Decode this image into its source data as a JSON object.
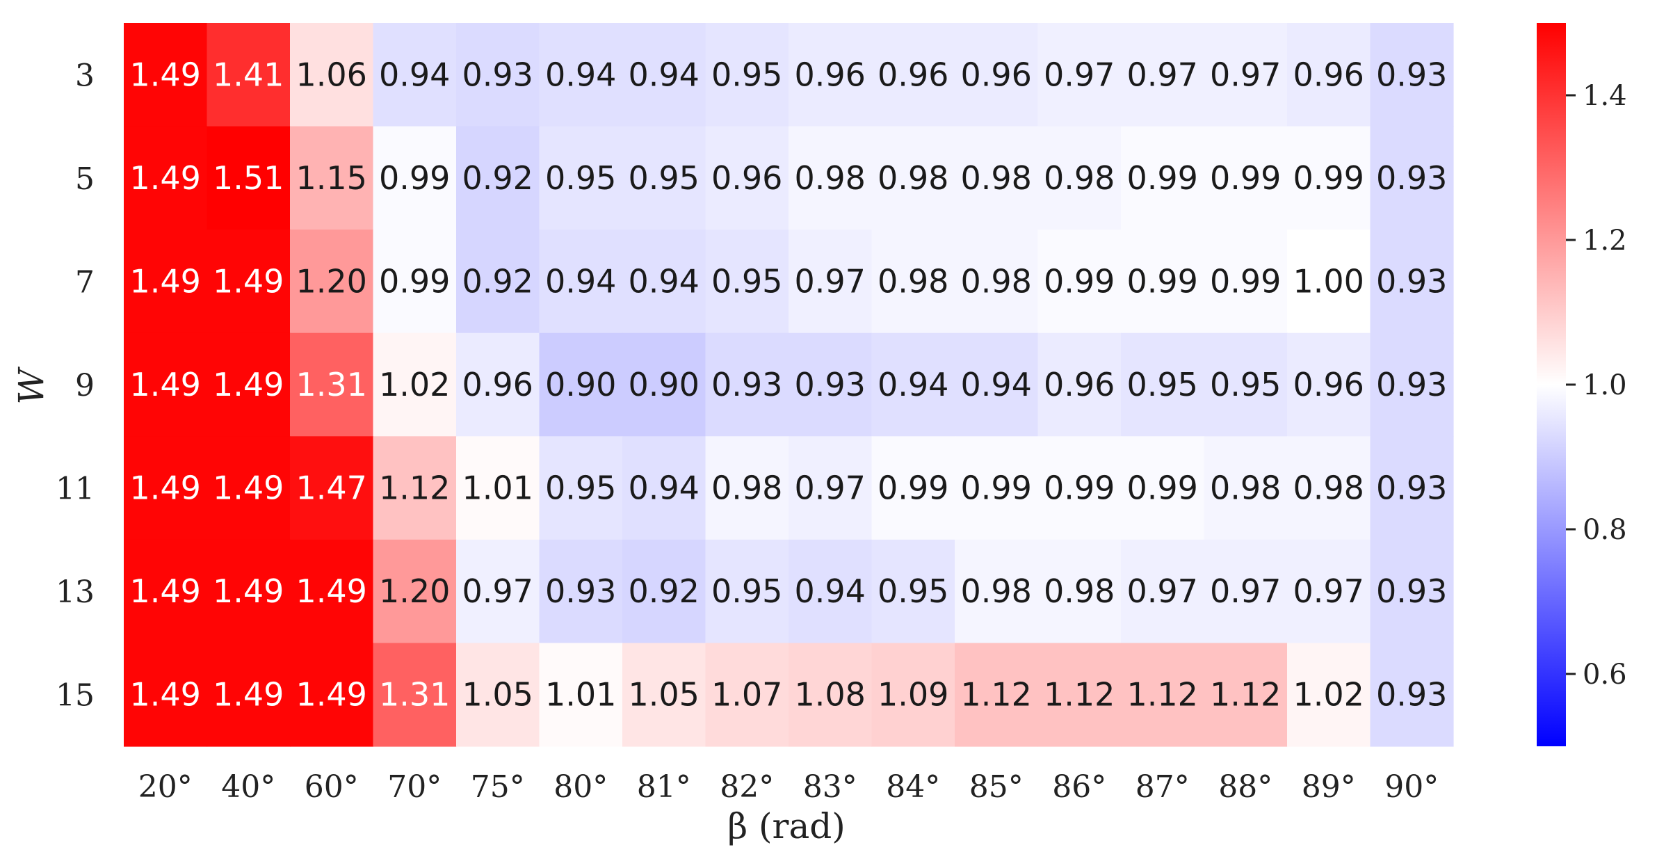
{
  "chart_data": {
    "type": "heatmap",
    "xlabel": "β (rad)",
    "ylabel": "W",
    "x_categories": [
      "20°",
      "40°",
      "60°",
      "70°",
      "75°",
      "80°",
      "81°",
      "82°",
      "83°",
      "84°",
      "85°",
      "86°",
      "87°",
      "88°",
      "89°",
      "90°"
    ],
    "y_categories": [
      "3",
      "5",
      "7",
      "9",
      "11",
      "13",
      "15"
    ],
    "values": [
      [
        1.49,
        1.41,
        1.06,
        0.94,
        0.93,
        0.94,
        0.94,
        0.95,
        0.96,
        0.96,
        0.96,
        0.97,
        0.97,
        0.97,
        0.96,
        0.93
      ],
      [
        1.49,
        1.51,
        1.15,
        0.99,
        0.92,
        0.95,
        0.95,
        0.96,
        0.98,
        0.98,
        0.98,
        0.98,
        0.99,
        0.99,
        0.99,
        0.93
      ],
      [
        1.49,
        1.49,
        1.2,
        0.99,
        0.92,
        0.94,
        0.94,
        0.95,
        0.97,
        0.98,
        0.98,
        0.99,
        0.99,
        0.99,
        1.0,
        0.93
      ],
      [
        1.49,
        1.49,
        1.31,
        1.02,
        0.96,
        0.9,
        0.9,
        0.93,
        0.93,
        0.94,
        0.94,
        0.96,
        0.95,
        0.95,
        0.96,
        0.93
      ],
      [
        1.49,
        1.49,
        1.47,
        1.12,
        1.01,
        0.95,
        0.94,
        0.98,
        0.97,
        0.99,
        0.99,
        0.99,
        0.99,
        0.98,
        0.98,
        0.93
      ],
      [
        1.49,
        1.49,
        1.49,
        1.2,
        0.97,
        0.93,
        0.92,
        0.95,
        0.94,
        0.95,
        0.98,
        0.98,
        0.97,
        0.97,
        0.97,
        0.93
      ],
      [
        1.49,
        1.49,
        1.49,
        1.31,
        1.05,
        1.01,
        1.05,
        1.07,
        1.08,
        1.09,
        1.12,
        1.12,
        1.12,
        1.12,
        1.02,
        0.93
      ]
    ],
    "colormap": "bwr",
    "vmin": 0.5,
    "vmax": 1.5,
    "center": 1.0,
    "colorbar_ticks": [
      "0.6",
      "0.8",
      "1.0",
      "1.2",
      "1.4"
    ],
    "colorbar_tick_values": [
      0.6,
      0.8,
      1.0,
      1.2,
      1.4
    ],
    "colors": {
      "low": "#0000ff",
      "mid": "#ffffff",
      "high": "#ff0000"
    }
  }
}
